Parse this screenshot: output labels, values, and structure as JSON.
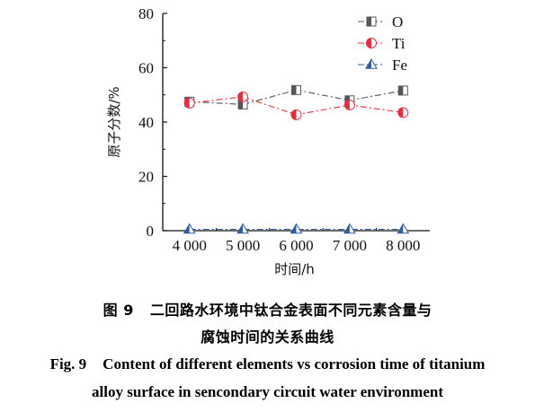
{
  "chart_data": {
    "type": "line",
    "xlabel": "时间/h",
    "ylabel": "原子分数/%",
    "x": [
      4000,
      5000,
      6000,
      7000,
      8000
    ],
    "x_tick_labels": [
      "4 000",
      "5 000",
      "6 000",
      "7 000",
      "8 000"
    ],
    "y_ticks": [
      0,
      20,
      40,
      60,
      80
    ],
    "y_tick_labels": [
      "0",
      "20",
      "40",
      "60",
      "80"
    ],
    "ylim": [
      0,
      80
    ],
    "grid": false,
    "legend_position": "top-right",
    "series": [
      {
        "name": "O",
        "values": [
          47.5,
          46.5,
          51.8,
          48.0,
          51.6
        ],
        "color": "#555555",
        "marker": "square-half"
      },
      {
        "name": "Ti",
        "values": [
          47.0,
          49.3,
          42.7,
          46.3,
          43.5
        ],
        "color": "#e0313f",
        "marker": "circle-half"
      },
      {
        "name": "Fe",
        "values": [
          0.5,
          0.5,
          0.5,
          0.5,
          0.5
        ],
        "color": "#2f5f9e",
        "marker": "triangle-half"
      }
    ]
  },
  "caption": {
    "cn_number": "图 9",
    "cn_line1": "二回路水环境中钛合金表面不同元素含量与",
    "cn_line2": "腐蚀时间的关系曲线",
    "en_number": "Fig. 9",
    "en_line1": "Content of different elements vs corrosion time of titanium",
    "en_line2": "alloy surface in sencondary circuit water environment"
  }
}
